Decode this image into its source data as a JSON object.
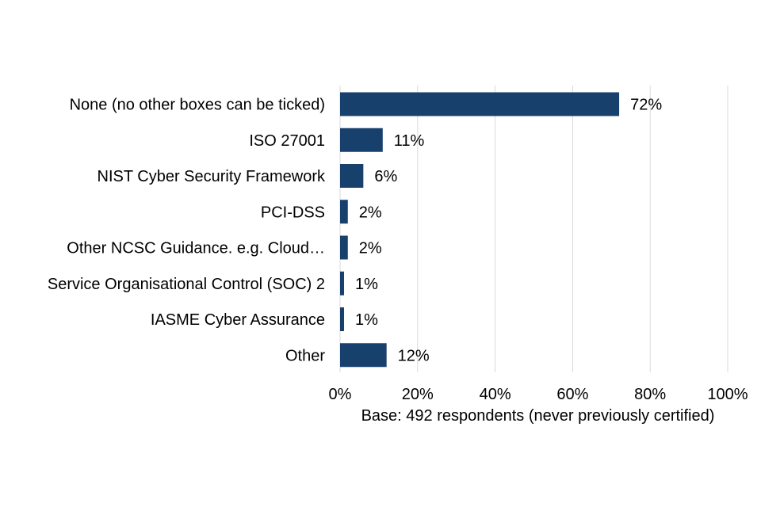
{
  "chart_data": {
    "type": "bar",
    "orientation": "horizontal",
    "categories": [
      "None (no other boxes can be ticked)",
      "ISO 27001",
      "NIST Cyber Security Framework",
      "PCI-DSS",
      "Other NCSC Guidance. e.g. Cloud…",
      "Service Organisational Control (SOC) 2",
      "IASME Cyber Assurance",
      "Other"
    ],
    "values": [
      72,
      11,
      6,
      2,
      2,
      1,
      1,
      12
    ],
    "value_labels": [
      "72%",
      "11%",
      "6%",
      "2%",
      "2%",
      "1%",
      "1%",
      "12%"
    ],
    "xlim": [
      0,
      100
    ],
    "x_ticks": [
      0,
      20,
      40,
      60,
      80,
      100
    ],
    "x_tick_labels": [
      "0%",
      "20%",
      "40%",
      "60%",
      "80%",
      "100%"
    ],
    "xlabel": "Base: 492 respondents (never previously certified)",
    "ylabel": "",
    "title": "",
    "grid": "vertical",
    "bar_color": "#17406d",
    "grid_color": "#d9d9d9"
  }
}
